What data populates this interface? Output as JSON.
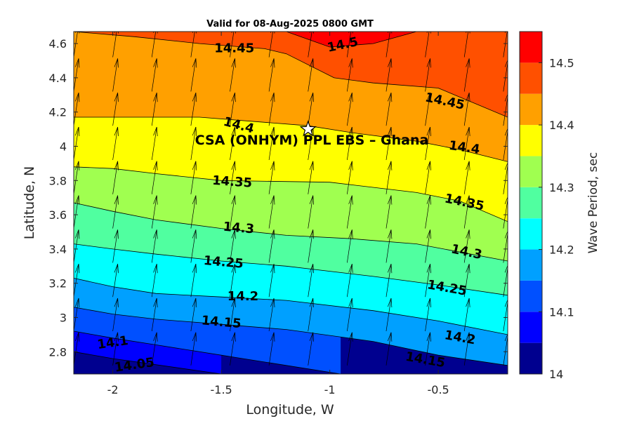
{
  "chart_data": {
    "type": "contour",
    "title": "Valid for 08-Aug-2025 0800 GMT",
    "xlabel": "Longitude, W",
    "ylabel": "Latitude, N",
    "colorbar_label": "Wave Period, sec",
    "xlim": [
      -2.18,
      -0.18
    ],
    "ylim": [
      2.67,
      4.67
    ],
    "x_ticks": [
      -2,
      -1.5,
      -1,
      -0.5
    ],
    "x_tick_labels": [
      "-2",
      "-1.5",
      "-1",
      "-0.5"
    ],
    "y_ticks": [
      2.8,
      3,
      3.2,
      3.4,
      3.6,
      3.8,
      4,
      4.2,
      4.4,
      4.6
    ],
    "y_tick_labels": [
      "2.8",
      "3",
      "3.2",
      "3.4",
      "3.6",
      "3.8",
      "4",
      "4.2",
      "4.4",
      "4.6"
    ],
    "colorbar": {
      "range": [
        14.0,
        14.55
      ],
      "ticks": [
        14,
        14.1,
        14.2,
        14.3,
        14.4,
        14.5
      ],
      "tick_labels": [
        "14",
        "14.1",
        "14.2",
        "14.3",
        "14.4",
        "14.5"
      ],
      "levels": [
        14.0,
        14.05,
        14.1,
        14.15,
        14.2,
        14.25,
        14.3,
        14.35,
        14.4,
        14.45,
        14.5,
        14.55
      ],
      "colors": [
        "#00008f",
        "#0000ff",
        "#0050ff",
        "#00a0ff",
        "#00ffff",
        "#50ffa0",
        "#a0ff50",
        "#ffff00",
        "#ffa000",
        "#ff5000",
        "#ff0000"
      ]
    },
    "contours": [
      {
        "level": 14.05,
        "label": "14.05",
        "points": [
          [
            -2.18,
            2.8
          ],
          [
            -2.0,
            2.76
          ],
          [
            -1.5,
            2.67
          ]
        ]
      },
      {
        "level": 14.1,
        "label": "14.1",
        "points": [
          [
            -2.18,
            2.92
          ],
          [
            -2.0,
            2.88
          ],
          [
            -1.8,
            2.84
          ],
          [
            -1.5,
            2.78
          ],
          [
            -1.2,
            2.72
          ],
          [
            -0.95,
            2.67
          ]
        ]
      },
      {
        "level": 14.15,
        "label": "14.15",
        "points": [
          [
            -2.18,
            3.06
          ],
          [
            -2.0,
            3.02
          ],
          [
            -1.8,
            2.99
          ],
          [
            -1.5,
            2.96
          ],
          [
            -1.2,
            2.93
          ],
          [
            -0.8,
            2.86
          ],
          [
            -0.5,
            2.78
          ],
          [
            -0.18,
            2.72
          ]
        ]
      },
      {
        "level": 14.2,
        "label": "14.2",
        "points": [
          [
            -2.18,
            3.23
          ],
          [
            -2.0,
            3.18
          ],
          [
            -1.8,
            3.14
          ],
          [
            -1.5,
            3.12
          ],
          [
            -1.2,
            3.1
          ],
          [
            -0.8,
            3.04
          ],
          [
            -0.5,
            2.98
          ],
          [
            -0.18,
            2.9
          ]
        ]
      },
      {
        "level": 14.25,
        "label": "14.25",
        "points": [
          [
            -2.18,
            3.43
          ],
          [
            -2.0,
            3.4
          ],
          [
            -1.8,
            3.37
          ],
          [
            -1.5,
            3.33
          ],
          [
            -1.2,
            3.3
          ],
          [
            -0.8,
            3.24
          ],
          [
            -0.5,
            3.19
          ],
          [
            -0.18,
            3.13
          ]
        ]
      },
      {
        "level": 14.3,
        "label": "14.3",
        "points": [
          [
            -2.18,
            3.67
          ],
          [
            -2.0,
            3.62
          ],
          [
            -1.8,
            3.57
          ],
          [
            -1.5,
            3.52
          ],
          [
            -1.2,
            3.48
          ],
          [
            -0.9,
            3.46
          ],
          [
            -0.6,
            3.43
          ],
          [
            -0.18,
            3.33
          ]
        ]
      },
      {
        "level": 14.35,
        "label": "14.35",
        "points": [
          [
            -2.18,
            3.88
          ],
          [
            -2.0,
            3.87
          ],
          [
            -1.8,
            3.84
          ],
          [
            -1.5,
            3.8
          ],
          [
            -1.0,
            3.79
          ],
          [
            -0.6,
            3.73
          ],
          [
            -0.4,
            3.68
          ],
          [
            -0.18,
            3.56
          ]
        ]
      },
      {
        "level": 14.4,
        "label": "14.4",
        "points": [
          [
            -2.18,
            4.17
          ],
          [
            -1.6,
            4.17
          ],
          [
            -1.3,
            4.14
          ],
          [
            -1.1,
            4.12
          ],
          [
            -0.9,
            4.08
          ],
          [
            -0.6,
            4.03
          ],
          [
            -0.4,
            3.98
          ],
          [
            -0.18,
            3.91
          ]
        ]
      },
      {
        "level": 14.45,
        "label": "14.45",
        "points": [
          [
            -2.18,
            4.67
          ],
          [
            -1.9,
            4.64
          ],
          [
            -1.6,
            4.6
          ],
          [
            -1.3,
            4.57
          ],
          [
            -1.2,
            4.54
          ],
          [
            -0.98,
            4.4
          ],
          [
            -0.8,
            4.37
          ],
          [
            -0.5,
            4.34
          ],
          [
            -0.18,
            4.17
          ]
        ]
      },
      {
        "level": 14.5,
        "label": "14.5",
        "points": [
          [
            -1.2,
            4.67
          ],
          [
            -1.0,
            4.58
          ],
          [
            -0.8,
            4.6
          ],
          [
            -0.6,
            4.67
          ]
        ]
      }
    ],
    "contour_labels": [
      {
        "text": "14.05",
        "x": -1.9,
        "y": 2.72,
        "angle": -8
      },
      {
        "text": "14.1",
        "x": -2.0,
        "y": 2.85,
        "angle": -8
      },
      {
        "text": "14.15",
        "x": -1.5,
        "y": 2.97,
        "angle": 5
      },
      {
        "text": "14.2",
        "x": -1.4,
        "y": 3.12,
        "angle": 0
      },
      {
        "text": "14.25",
        "x": -1.49,
        "y": 3.32,
        "angle": 5
      },
      {
        "text": "14.3",
        "x": -1.42,
        "y": 3.52,
        "angle": 5
      },
      {
        "text": "14.35",
        "x": -1.45,
        "y": 3.79,
        "angle": 4
      },
      {
        "text": "14.4",
        "x": -1.42,
        "y": 4.12,
        "angle": 15
      },
      {
        "text": "14.45",
        "x": -1.44,
        "y": 4.57,
        "angle": 0
      },
      {
        "text": "14.5",
        "x": -0.94,
        "y": 4.59,
        "angle": -12
      },
      {
        "text": "14.45",
        "x": -0.47,
        "y": 4.26,
        "angle": 12
      },
      {
        "text": "14.4",
        "x": -0.38,
        "y": 3.99,
        "angle": 8
      },
      {
        "text": "14.35",
        "x": -0.38,
        "y": 3.67,
        "angle": 12
      },
      {
        "text": "14.3",
        "x": -0.37,
        "y": 3.38,
        "angle": 12
      },
      {
        "text": "14.25",
        "x": -0.46,
        "y": 3.17,
        "angle": 10
      },
      {
        "text": "14.2",
        "x": -0.4,
        "y": 2.88,
        "angle": 10
      },
      {
        "text": "14.15",
        "x": -0.56,
        "y": 2.75,
        "angle": 10
      }
    ],
    "site": {
      "label": "CSA (ONHYM) PPL EBS  – Ghana",
      "x": -1.1,
      "y": 4.1,
      "marker": "star"
    },
    "vector_field": {
      "grid_x_start": -2.18,
      "grid_x_step": 0.18,
      "grid_y_start": 2.72,
      "grid_y_step": 0.2,
      "direction": "north-northeast"
    }
  }
}
